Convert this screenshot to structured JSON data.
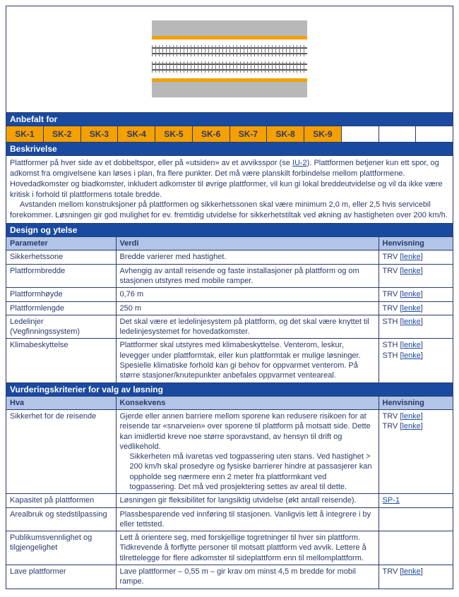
{
  "diagram": {
    "platform_color": "#b8b8b8",
    "edge_color": "#f4a000",
    "track_tie_color": "#777777",
    "track_rail_color": "#555555"
  },
  "sec_anbefalt": "Anbefalt for",
  "sk": [
    "SK-1",
    "SK-2",
    "SK-3",
    "SK-4",
    "SK-5",
    "SK-6",
    "SK-7",
    "SK-8",
    "SK-9"
  ],
  "sec_beskrivelse": "Beskrivelse",
  "desc_p1a": "Plattformer på hver side av et dobbeltspor, eller på «utsiden» av et avviksspor (se ",
  "desc_link": "IU-2",
  "desc_p1b": "). Plattformen betjener kun ett spor, og adkomst fra omgivelsene kan løses i plan, fra flere punkter. Det må være plan­skilt forbindelse mellom plattformene. Hovedadkomster og biadkomster, inkludert adkomster til øvrige plattformer, vil kun gi lokal breddeutvidelse og vil da ikke være kritisk i forhold til plattformens totale bredde.",
  "desc_p2": "Avstanden mellom konstruksjoner på plattformen og sikkerhetssonen skal være minimum 2,0 m, eller 2,5 hvis servicebil forekommer. Løsningen gir god mulighet for ev. fremtidig utvidelse for sikkerhetstiltak ved økning av hastigheten over 200 km/h.",
  "sec_design": "Design og ytelse",
  "th_parameter": "Parameter",
  "th_verdi": "Verdi",
  "th_henvisning": "Henvisning",
  "lenke": "lenke",
  "design_rows": [
    {
      "p": "Sikkerhetssone",
      "v": "Bredde varierer med hastighet.",
      "refs": [
        "TRV"
      ]
    },
    {
      "p": "Plattformbredde",
      "v": "Avhengig av antall reisende og faste installasjoner på platt­form og om stasjonen utstyres med mobile ramper.",
      "refs": [
        "TRV"
      ]
    },
    {
      "p": "Plattformhøyde",
      "v": "0,76 m",
      "refs": [
        "TRV"
      ]
    },
    {
      "p": "Plattformlengde",
      "v": "250 m",
      "refs": [
        "TRV"
      ]
    },
    {
      "p": "Ledelinjer (Vegfinningssystem)",
      "v": "Det skal være et ledelinjesystem på plattform, og det skal være knyttet til ledelinjesystemet for hovedatkomster.",
      "refs": [
        "STH"
      ]
    },
    {
      "p": "Klimabeskyttelse",
      "v": "Plattformer skal utstyres med klimabeskyttelse. Venterom, leskur, levegger under plattformtak, eller kun plattformtak er mulige løsninger. Spesielle klimatiske forhold kan gi behov for oppvarmet venterom. På større stasjo­ner/knutepunkter anbefales oppvarmet venteareal.",
      "refs": [
        "STH",
        "STH"
      ]
    }
  ],
  "sec_vurd": "Vurderingskriterier for valg av løsning",
  "th_hva": "Hva",
  "th_konsekvens": "Konsekvens",
  "vurd_rows": [
    {
      "p": "Sikkerhet for de rei­sende",
      "v": "Gjerde eller annen barriere mellom sporene kan redusere risikoen for at reisende tar «snarveien» over sporene til plattform på motsatt side. Dette kan imidlertid kreve noe større sporavstand, av hensyn til drift og vedlikehold.",
      "v2": "Sikkerheten må ivaretas ved togpassering uten stans. Ved hastighet > 200 km/h skal prosedyre og fysiske barrie­rer hindre at passasjerer kan oppholde seg nærmere enn 2 meter fra plattformkant ved togpassering. Det må ved pro­sjektering settes av areal til dette.",
      "refs": [
        "TRV",
        "TRV"
      ]
    },
    {
      "p": "Kapasitet på plattfor­men",
      "v": "Løsningen gir fleksibilitet for langsiktig utvidelse (økt antall reisende).",
      "ref_bare": "SP-1"
    },
    {
      "p": "Arealbruk og stedstil­passing",
      "v": "Plassbesparende ved innføring til stasjonen. Vanligvis lett å integrere i by eller tettsted.",
      "refs": []
    },
    {
      "p": "Publikumsvennlighet og tilgjengelighet",
      "v": "Lett å orientere seg, med forskjellige togretninger til hver sin plattform. Tidkrevende å forflytte personer til motsatt plattform ved avvik. Lettere å tilrettelegge for flere adkom­ster til sideplattform enn til mellomplattform.",
      "refs": []
    },
    {
      "p": "Lave plattformer",
      "v": "Lave plattformer – 0,55 m – gir krav om minst 4,5 m bred­de for mobil rampe.",
      "refs": [
        "TRV"
      ]
    }
  ]
}
